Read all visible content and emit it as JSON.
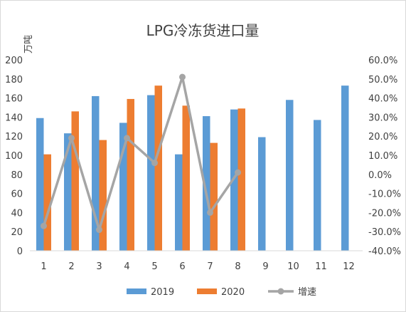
{
  "chart_data": {
    "type": "bar",
    "title": "LPG冷冻货进口量",
    "ylabel": "万吨",
    "categories": [
      "1",
      "2",
      "3",
      "4",
      "5",
      "6",
      "7",
      "8",
      "9",
      "10",
      "11",
      "12"
    ],
    "ylim": [
      0,
      200
    ],
    "y_ticks": [
      "0",
      "20",
      "40",
      "60",
      "80",
      "100",
      "120",
      "140",
      "160",
      "180",
      "200"
    ],
    "y2lim": [
      -0.4,
      0.6
    ],
    "y2_ticks": [
      "-40.0%",
      "-30.0%",
      "-20.0%",
      "-10.0%",
      "0.0%",
      "10.0%",
      "20.0%",
      "30.0%",
      "40.0%",
      "50.0%",
      "60.0%"
    ],
    "grid": false,
    "legend_position": "bottom",
    "series": [
      {
        "name": "2019",
        "type": "bar",
        "color": "#5b9bd5",
        "values": [
          139,
          123,
          162,
          134,
          163,
          101,
          141,
          148,
          119,
          158,
          137,
          173
        ]
      },
      {
        "name": "2020",
        "type": "bar",
        "color": "#ed7d31",
        "values": [
          101,
          146,
          116,
          159,
          173,
          152,
          113,
          149,
          null,
          null,
          null,
          null
        ]
      },
      {
        "name": "增速",
        "type": "line",
        "axis": "right",
        "color": "#a5a5a5",
        "values": [
          -0.27,
          0.19,
          -0.29,
          0.19,
          0.06,
          0.51,
          -0.2,
          0.01,
          null,
          null,
          null,
          null
        ]
      }
    ]
  }
}
